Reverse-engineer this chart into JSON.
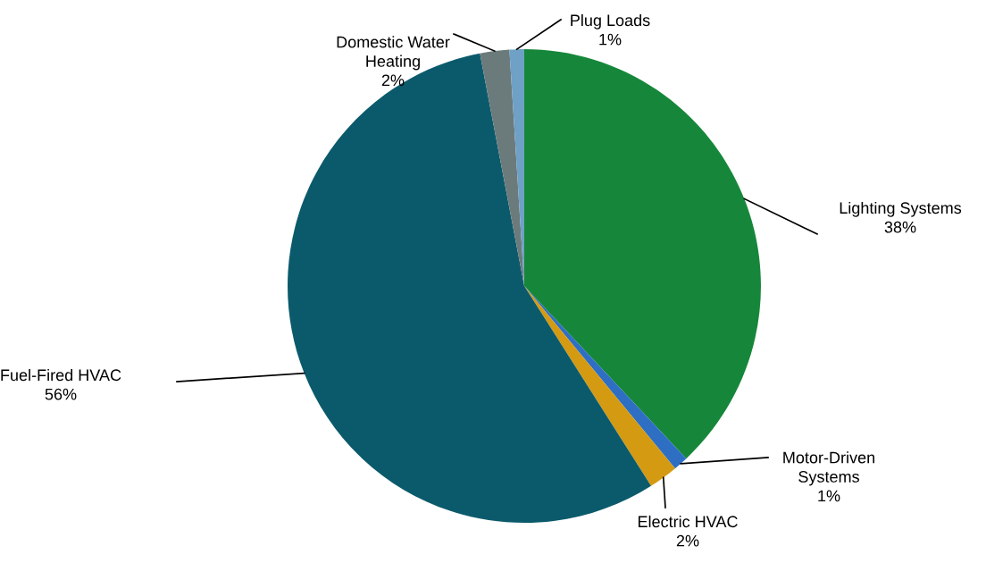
{
  "chart_data": {
    "type": "pie",
    "categories": [
      "Lighting Systems",
      "Motor-Driven\nSystems",
      "Electric HVAC",
      "Fuel-Fired HVAC",
      "Domestic Water\nHeating",
      "Plug Loads"
    ],
    "values": [
      38,
      1,
      2,
      56,
      2,
      1
    ],
    "colors": [
      "#16873a",
      "#2e6fc4",
      "#d49a12",
      "#0b5a6c",
      "#6b7b7c",
      "#6fa0c6"
    ],
    "value_labels": [
      "38%",
      "1%",
      "2%",
      "56%",
      "2%",
      "1%"
    ],
    "legend": false
  }
}
